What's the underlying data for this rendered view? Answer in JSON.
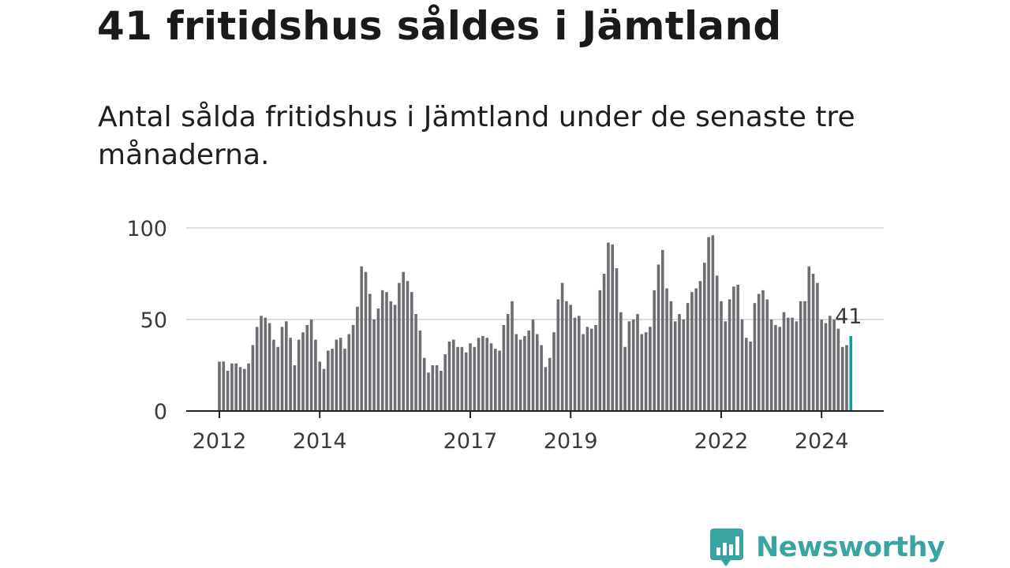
{
  "title": "41 fritidshus såldes i Jämtland",
  "subtitle": "Antal sålda fritidshus i Jämtland under de senaste tre månaderna.",
  "brand": {
    "name": "Newsworthy",
    "color": "#3aa4a2",
    "icon": "newsworthy-chart-bubble-icon"
  },
  "colors": {
    "bar": "#6e6d72",
    "highlight": "#1e9a96",
    "grid": "#dcdcdc",
    "axis": "#222222"
  },
  "chart_data": {
    "type": "bar",
    "x_start": "2012-01",
    "frequency": "monthly",
    "ylim": [
      0,
      100
    ],
    "yticks": [
      0,
      50,
      100
    ],
    "xtick_labels": [
      "2012",
      "2014",
      "2017",
      "2019",
      "2022",
      "2024"
    ],
    "grid": true,
    "highlight_label": "41",
    "values": [
      27,
      27,
      22,
      26,
      26,
      24,
      23,
      26,
      36,
      46,
      52,
      51,
      48,
      39,
      35,
      46,
      49,
      40,
      25,
      39,
      43,
      47,
      50,
      39,
      27,
      23,
      33,
      34,
      39,
      40,
      34,
      42,
      47,
      57,
      79,
      76,
      64,
      50,
      56,
      66,
      65,
      60,
      58,
      70,
      76,
      71,
      65,
      53,
      44,
      29,
      21,
      25,
      25,
      22,
      31,
      38,
      39,
      35,
      35,
      32,
      37,
      35,
      40,
      41,
      40,
      37,
      34,
      33,
      47,
      53,
      60,
      42,
      39,
      41,
      44,
      50,
      42,
      36,
      24,
      29,
      43,
      61,
      70,
      60,
      58,
      51,
      52,
      42,
      46,
      45,
      47,
      66,
      75,
      92,
      91,
      78,
      54,
      35,
      49,
      50,
      53,
      42,
      43,
      46,
      66,
      80,
      88,
      67,
      60,
      49,
      53,
      50,
      59,
      65,
      67,
      71,
      81,
      95,
      96,
      74,
      60,
      49,
      61,
      68,
      69,
      50,
      40,
      38,
      59,
      64,
      66,
      61,
      50,
      47,
      46,
      54,
      51,
      51,
      49,
      60,
      60,
      79,
      75,
      70,
      50,
      48,
      52,
      50,
      45,
      35,
      36,
      41
    ]
  }
}
